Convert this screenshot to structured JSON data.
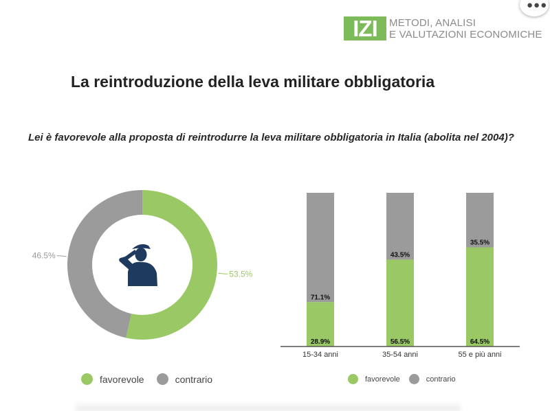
{
  "logo": {
    "mark": "IZI",
    "line1": "METODI, ANALISI",
    "line2": "E VALUTAZIONI ECONOMICHE"
  },
  "title": "La reintroduzione della leva militare obbligatoria",
  "question": "Lei è favorevole alla proposta di reintrodurre la leva militare obbligatoria in Italia (abolita nel 2004)?",
  "icons": {
    "menu": "more-dots-icon",
    "center": "saluting-soldier-icon"
  },
  "colors": {
    "favorevole": "#9ac865",
    "contrario": "#9b9b9b",
    "accent": "#7dbb5a"
  },
  "legend_left": {
    "favorevole": "favorevole",
    "contrario": "contrario"
  },
  "legend_right": {
    "favorevole": "favorevole",
    "contrario": "contrario"
  },
  "chart_data": [
    {
      "type": "pie",
      "labels": [
        "favorevole",
        "contrario"
      ],
      "values": [
        53.5,
        46.5
      ],
      "value_labels": [
        "53.5%",
        "46.5%"
      ],
      "legend": "bottom"
    },
    {
      "type": "bar",
      "stacked": true,
      "categories": [
        "15-34 anni",
        "35-54 anni",
        "55 e più anni"
      ],
      "series": [
        {
          "name": "favorevole",
          "values": [
            28.9,
            56.5,
            64.5
          ],
          "labels": [
            "28.9%",
            "56.5%",
            "64.5%"
          ]
        },
        {
          "name": "contrario",
          "values": [
            71.1,
            43.5,
            35.5
          ],
          "labels": [
            "71.1%",
            "43.5%",
            "35.5%"
          ]
        }
      ],
      "ylim": [
        0,
        100
      ],
      "legend": "bottom"
    }
  ]
}
